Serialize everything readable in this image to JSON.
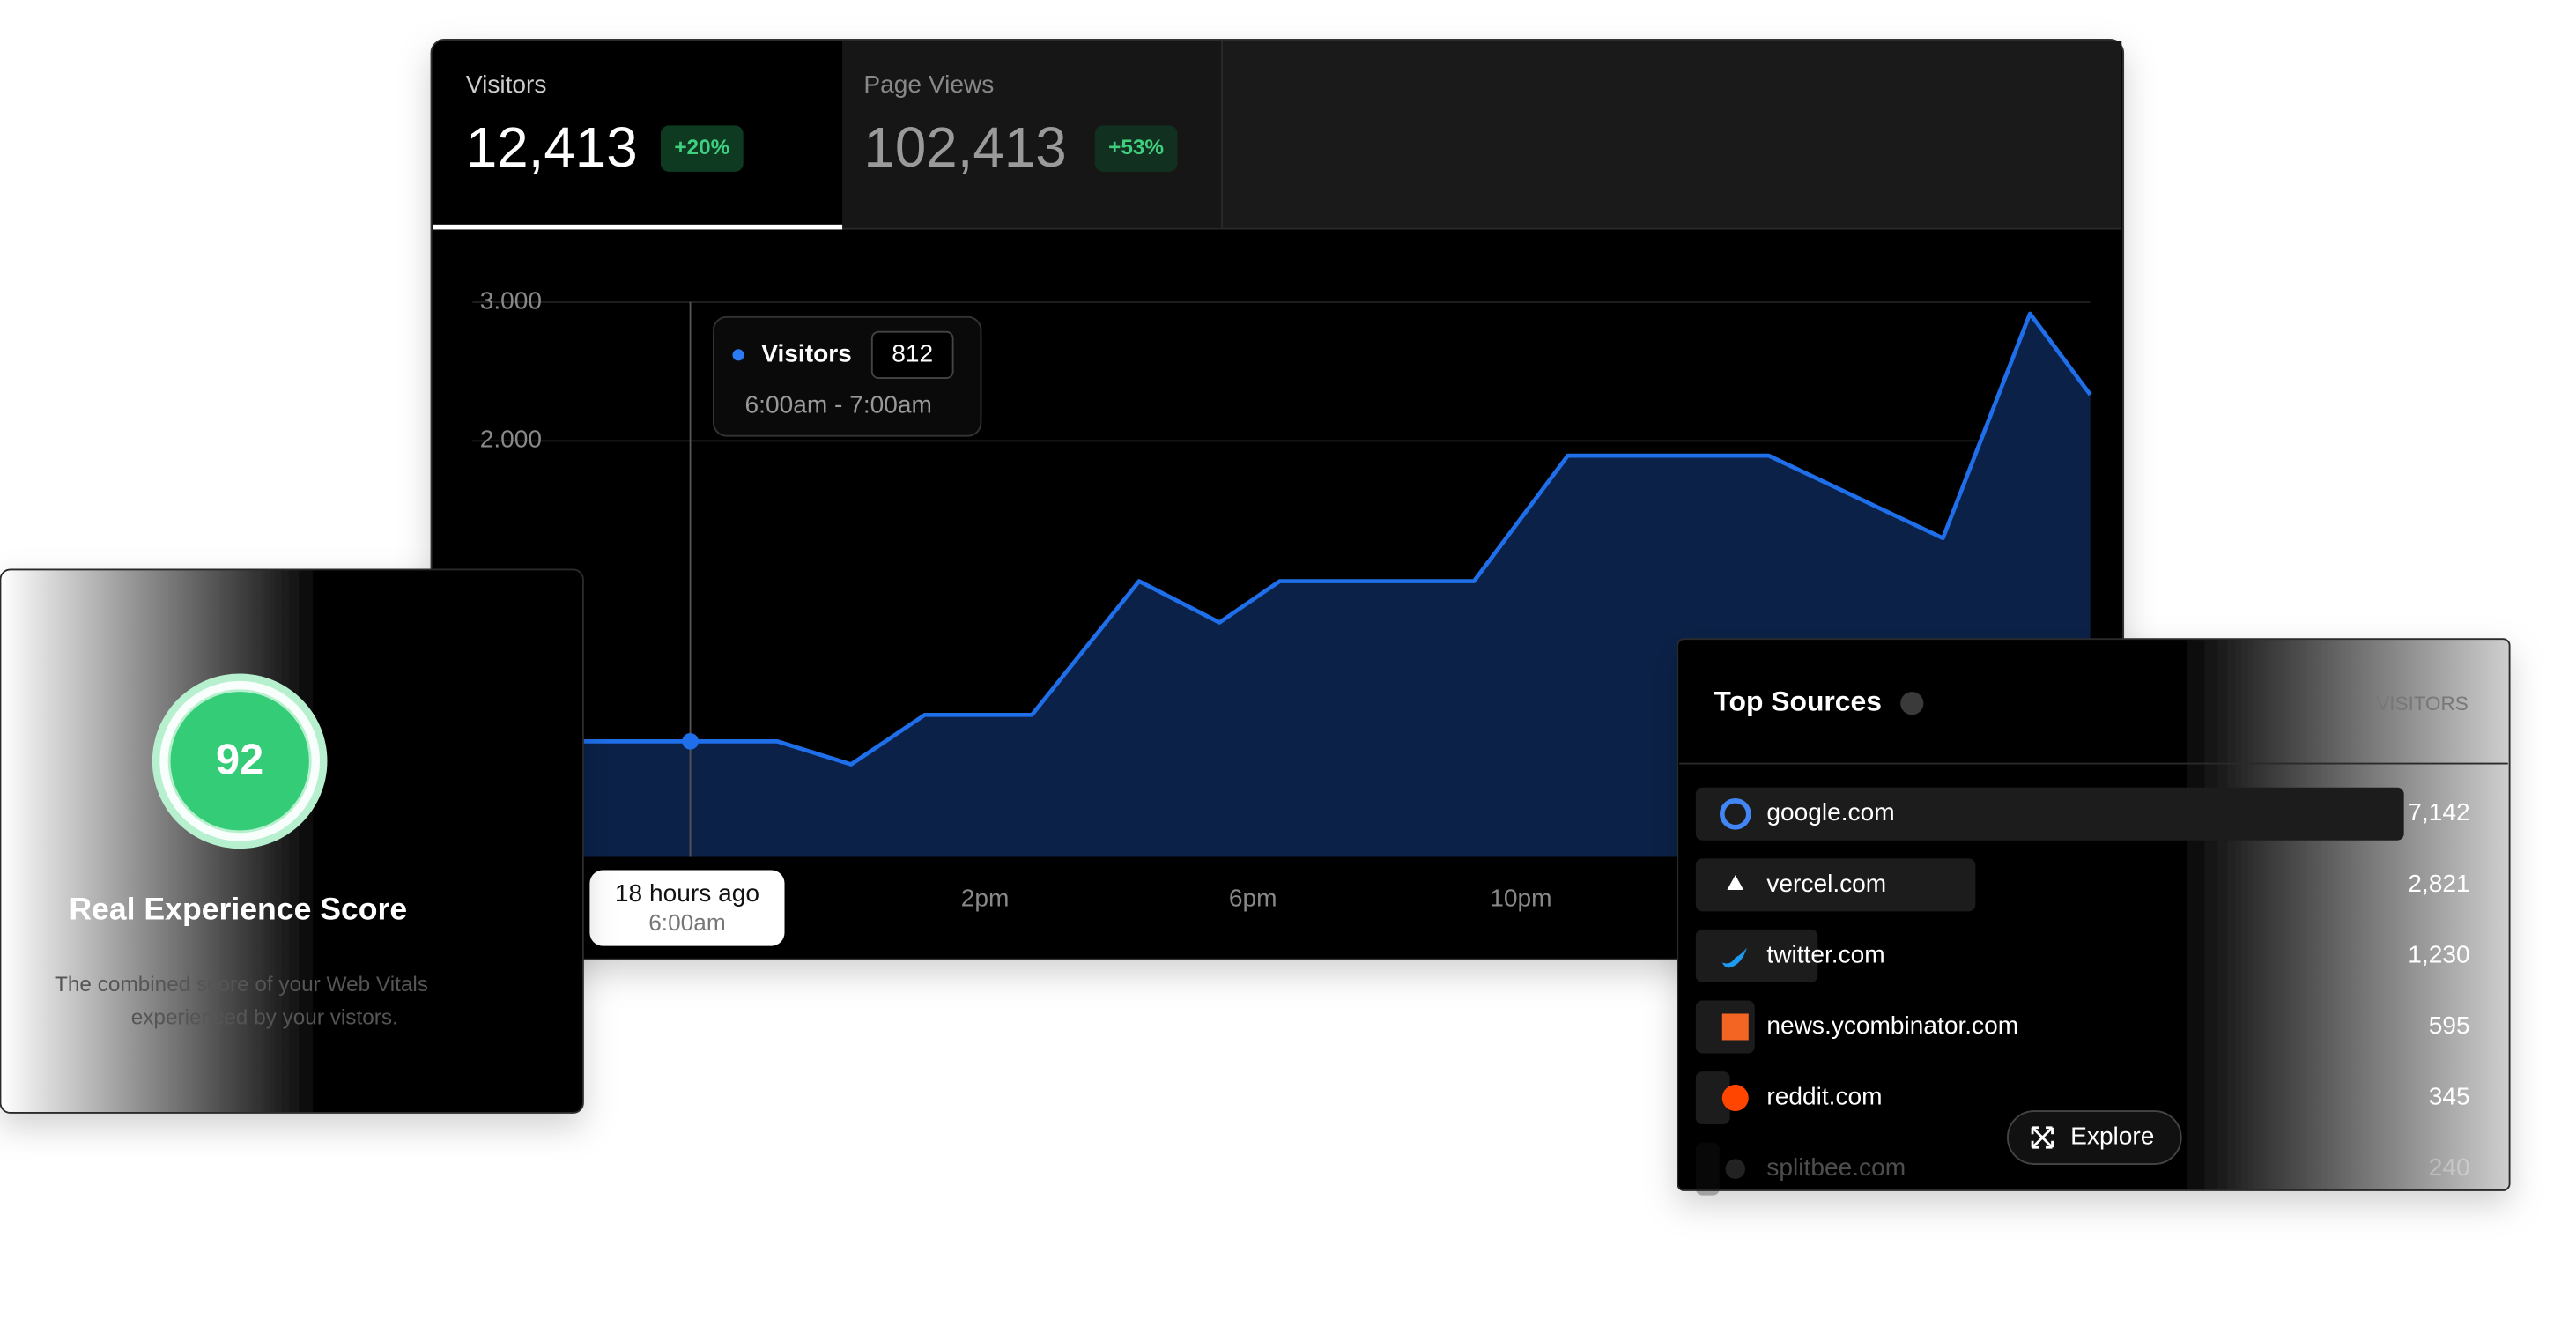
{
  "tabs": [
    {
      "label": "Visitors",
      "value": "12,413",
      "change": "+20%"
    },
    {
      "label": "Page Views",
      "value": "102,413",
      "change": "+53%"
    }
  ],
  "chart_data": {
    "type": "area",
    "x": [
      8,
      9.6,
      10.9,
      12,
      13.1,
      14.7,
      16.3,
      17.5,
      18.4,
      21.3,
      22.7,
      25.7,
      28.3,
      29.6,
      30.5
    ],
    "series": [
      {
        "name": "Visitors",
        "color": "#1f6feb",
        "values": [
          -167,
          -167,
          -167,
          -333,
          24,
          24,
          988,
          690,
          988,
          988,
          1893,
          1893,
          1298,
          2917,
          2333
        ]
      }
    ],
    "xlim": [
      8,
      30.5
    ],
    "xticks": [
      {
        "value": 14,
        "label": "2pm"
      },
      {
        "value": 18,
        "label": "6pm"
      },
      {
        "value": 22,
        "label": "10pm"
      }
    ],
    "ylim": [
      -1000,
      3000
    ],
    "yticks": [
      {
        "value": 3000,
        "label": "3.000"
      },
      {
        "value": 2000,
        "label": "2.000"
      }
    ],
    "grid": true
  },
  "tooltip": {
    "value": 812,
    "range": "6:00am - 7:00am"
  },
  "hover_label": {
    "relative": "18 hours ago",
    "time": "6:00am"
  },
  "score": {
    "value": 92,
    "title": "Real Experience Score",
    "description": [
      "The combined score of your Web Vitals",
      "experienced by your vistors."
    ]
  },
  "sources": {
    "title": "Top Sources",
    "column": "VISITORS",
    "button": "Explore",
    "rows": [
      {
        "name": "google.com",
        "visitors": 7142,
        "label": "7,142"
      },
      {
        "name": "vercel.com",
        "visitors": 2821,
        "label": "2,821"
      },
      {
        "name": "twitter.com",
        "visitors": 1230,
        "label": "1,230"
      },
      {
        "name": "news.ycombinator.com",
        "visitors": 595,
        "label": "595"
      },
      {
        "name": "reddit.com",
        "visitors": 345,
        "label": "345"
      },
      {
        "name": "splitbee.com",
        "visitors": 240,
        "label": "240"
      }
    ]
  }
}
